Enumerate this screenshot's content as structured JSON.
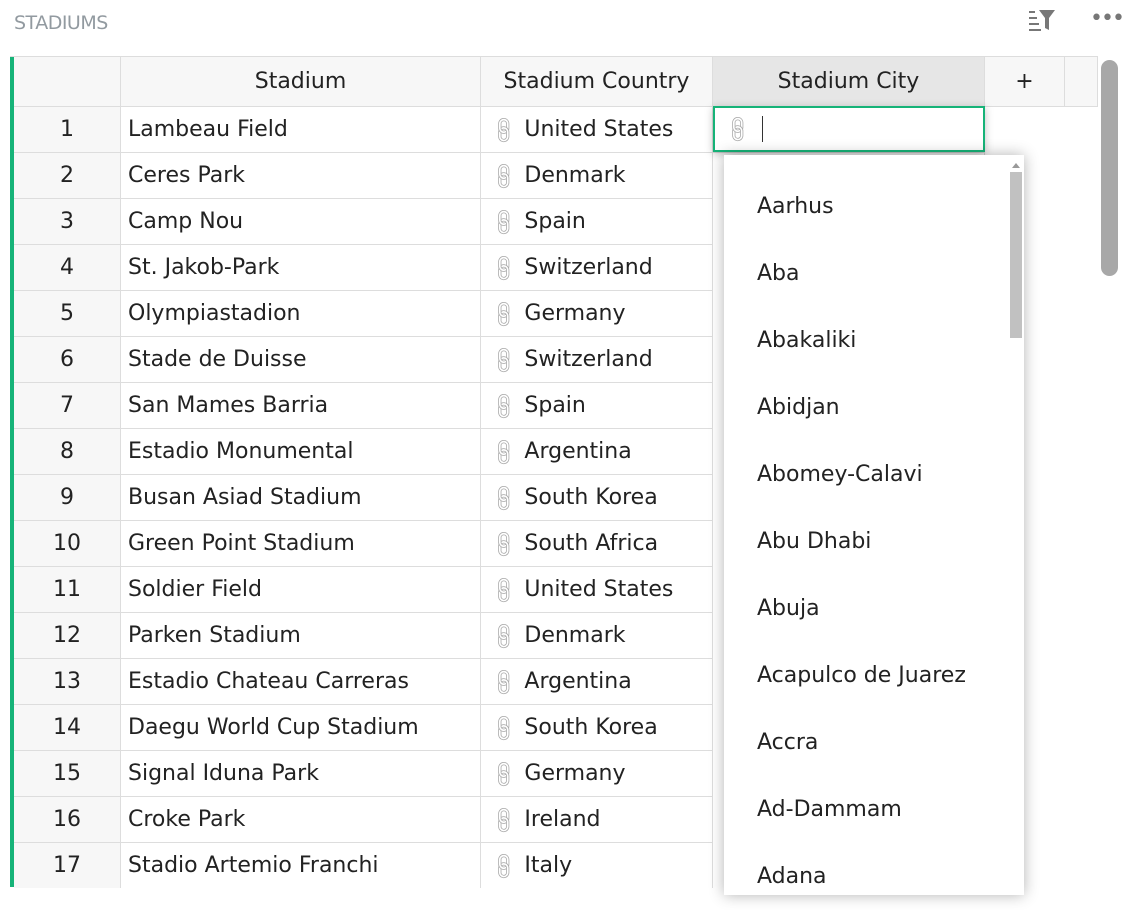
{
  "title": "STADIUMS",
  "header": {
    "sort_filter_icon": "sort-filter-icon",
    "more_icon": "more-horizontal-icon"
  },
  "columns": [
    "Stadium",
    "Stadium Country",
    "Stadium City",
    "+"
  ],
  "rows": [
    {
      "n": "1",
      "stadium": "Lambeau Field",
      "country": "United States"
    },
    {
      "n": "2",
      "stadium": "Ceres Park",
      "country": "Denmark"
    },
    {
      "n": "3",
      "stadium": "Camp Nou",
      "country": "Spain"
    },
    {
      "n": "4",
      "stadium": "St. Jakob-Park",
      "country": "Switzerland"
    },
    {
      "n": "5",
      "stadium": "Olympiastadion",
      "country": "Germany"
    },
    {
      "n": "6",
      "stadium": "Stade de Duisse",
      "country": "Switzerland"
    },
    {
      "n": "7",
      "stadium": "San Mames Barria",
      "country": "Spain"
    },
    {
      "n": "8",
      "stadium": "Estadio Monumental",
      "country": "Argentina"
    },
    {
      "n": "9",
      "stadium": "Busan Asiad Stadium",
      "country": "South Korea"
    },
    {
      "n": "10",
      "stadium": "Green Point Stadium",
      "country": "South Africa"
    },
    {
      "n": "11",
      "stadium": "Soldier Field",
      "country": "United States"
    },
    {
      "n": "12",
      "stadium": "Parken Stadium",
      "country": "Denmark"
    },
    {
      "n": "13",
      "stadium": "Estadio Chateau Carreras",
      "country": "Argentina"
    },
    {
      "n": "14",
      "stadium": "Daegu World Cup Stadium",
      "country": "South Korea"
    },
    {
      "n": "15",
      "stadium": "Signal Iduna Park",
      "country": "Germany"
    },
    {
      "n": "16",
      "stadium": "Croke Park",
      "country": "Ireland"
    },
    {
      "n": "17",
      "stadium": "Stadio Artemio Franchi",
      "country": "Italy"
    }
  ],
  "editor": {
    "value": ""
  },
  "dropdown": [
    "Aarhus",
    "Aba",
    "Abakaliki",
    "Abidjan",
    "Abomey-Calavi",
    "Abu Dhabi",
    "Abuja",
    "Acapulco de Juarez",
    "Accra",
    "Ad-Dammam",
    "Adana"
  ],
  "colors": {
    "accent": "#16b378"
  }
}
